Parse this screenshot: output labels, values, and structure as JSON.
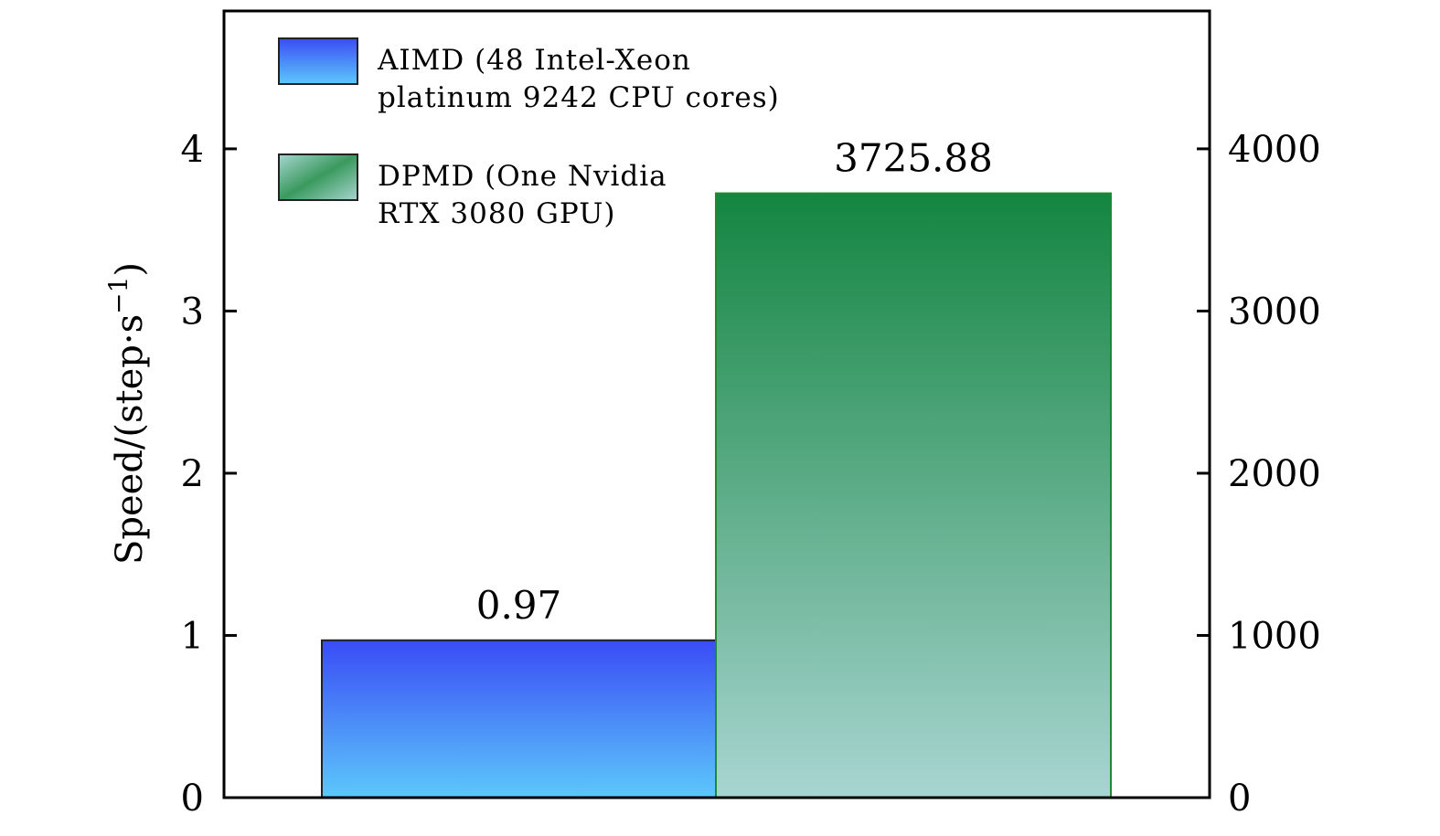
{
  "chart_data": {
    "type": "bar",
    "series": [
      {
        "name_lines": [
          "AIMD (48 Intel-Xeon",
          "platinum 9242 CPU cores)"
        ],
        "value": 0.97,
        "value_label": "0.97",
        "axis": "left",
        "colors": {
          "top": "#3a4cf5",
          "bottom": "#5cc8fb",
          "edge": "#222222"
        }
      },
      {
        "name_lines": [
          "DPMD (One Nvidia",
          "RTX 3080 GPU)"
        ],
        "value": 3725.88,
        "value_label": "3725.88",
        "axis": "right",
        "colors": {
          "top": "#148541",
          "bottom": "#a8d5d1",
          "edge": "#1c8a35"
        }
      }
    ],
    "y_left": {
      "label": "Speed/(step·s",
      "label_sup": "−1",
      "label_close": ")",
      "ylim": [
        0,
        4.85
      ],
      "ticks": [
        0,
        1,
        2,
        3,
        4
      ],
      "tick_labels": [
        "0",
        "1",
        "2",
        "3",
        "4"
      ]
    },
    "y_right": {
      "ylim": [
        0,
        4850
      ],
      "ticks": [
        0,
        1000,
        2000,
        3000,
        4000
      ],
      "tick_labels": [
        "0",
        "1000",
        "2000",
        "3000",
        "4000"
      ]
    },
    "legend": {
      "placement": "top-left"
    },
    "grid": false
  }
}
